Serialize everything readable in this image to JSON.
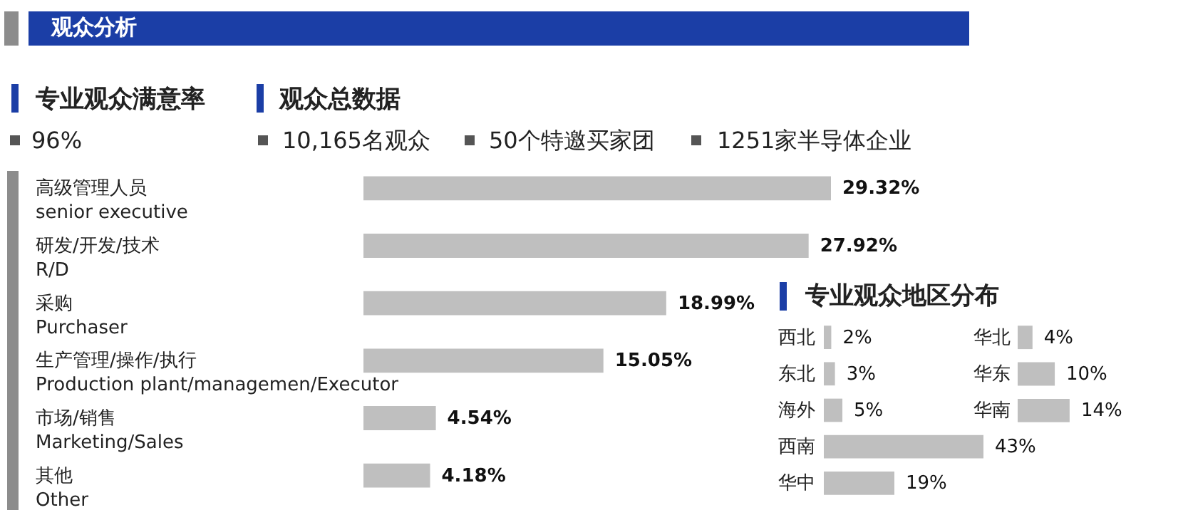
{
  "chart_data": [
    {
      "type": "other",
      "title": "观众分析",
      "annotations": [
        "专业观众满意率",
        "96%",
        "观众总数据",
        "10,165名观众",
        "50个特邀买家团",
        "1251家半导体企业"
      ]
    },
    {
      "type": "bar",
      "orientation": "horizontal",
      "color": "#bfbfbf",
      "categories": [
        "高级管理人员\nsenior executive",
        "研发/开发/技术\nR/D",
        "采购\nPurchaser",
        "生产管理/操作/执行\nProduction plant/managemen/Executor",
        "市场/销售\nMarketing/Sales",
        "其他\nOther"
      ],
      "values": [
        29.32,
        27.92,
        18.99,
        15.05,
        4.54,
        4.18
      ],
      "value_labels": [
        "29.32%",
        "27.92%",
        "18.99%",
        "15.05%",
        "4.54%",
        "4.18%"
      ]
    },
    {
      "type": "bar",
      "orientation": "horizontal",
      "title": "专业观众地区分布",
      "color": "#bfbfbf",
      "categories": [
        "西北",
        "东北",
        "海外",
        "西南",
        "华中"
      ],
      "values": [
        2,
        3,
        5,
        43,
        19
      ],
      "value_labels": [
        "2%",
        "3%",
        "5%",
        "43%",
        "19%"
      ]
    },
    {
      "type": "bar",
      "orientation": "horizontal",
      "color": "#bfbfbf",
      "categories": [
        "华北",
        "华东",
        "华南"
      ],
      "values": [
        4,
        10,
        14
      ],
      "value_labels": [
        "4%",
        "10%",
        "14%"
      ]
    }
  ]
}
